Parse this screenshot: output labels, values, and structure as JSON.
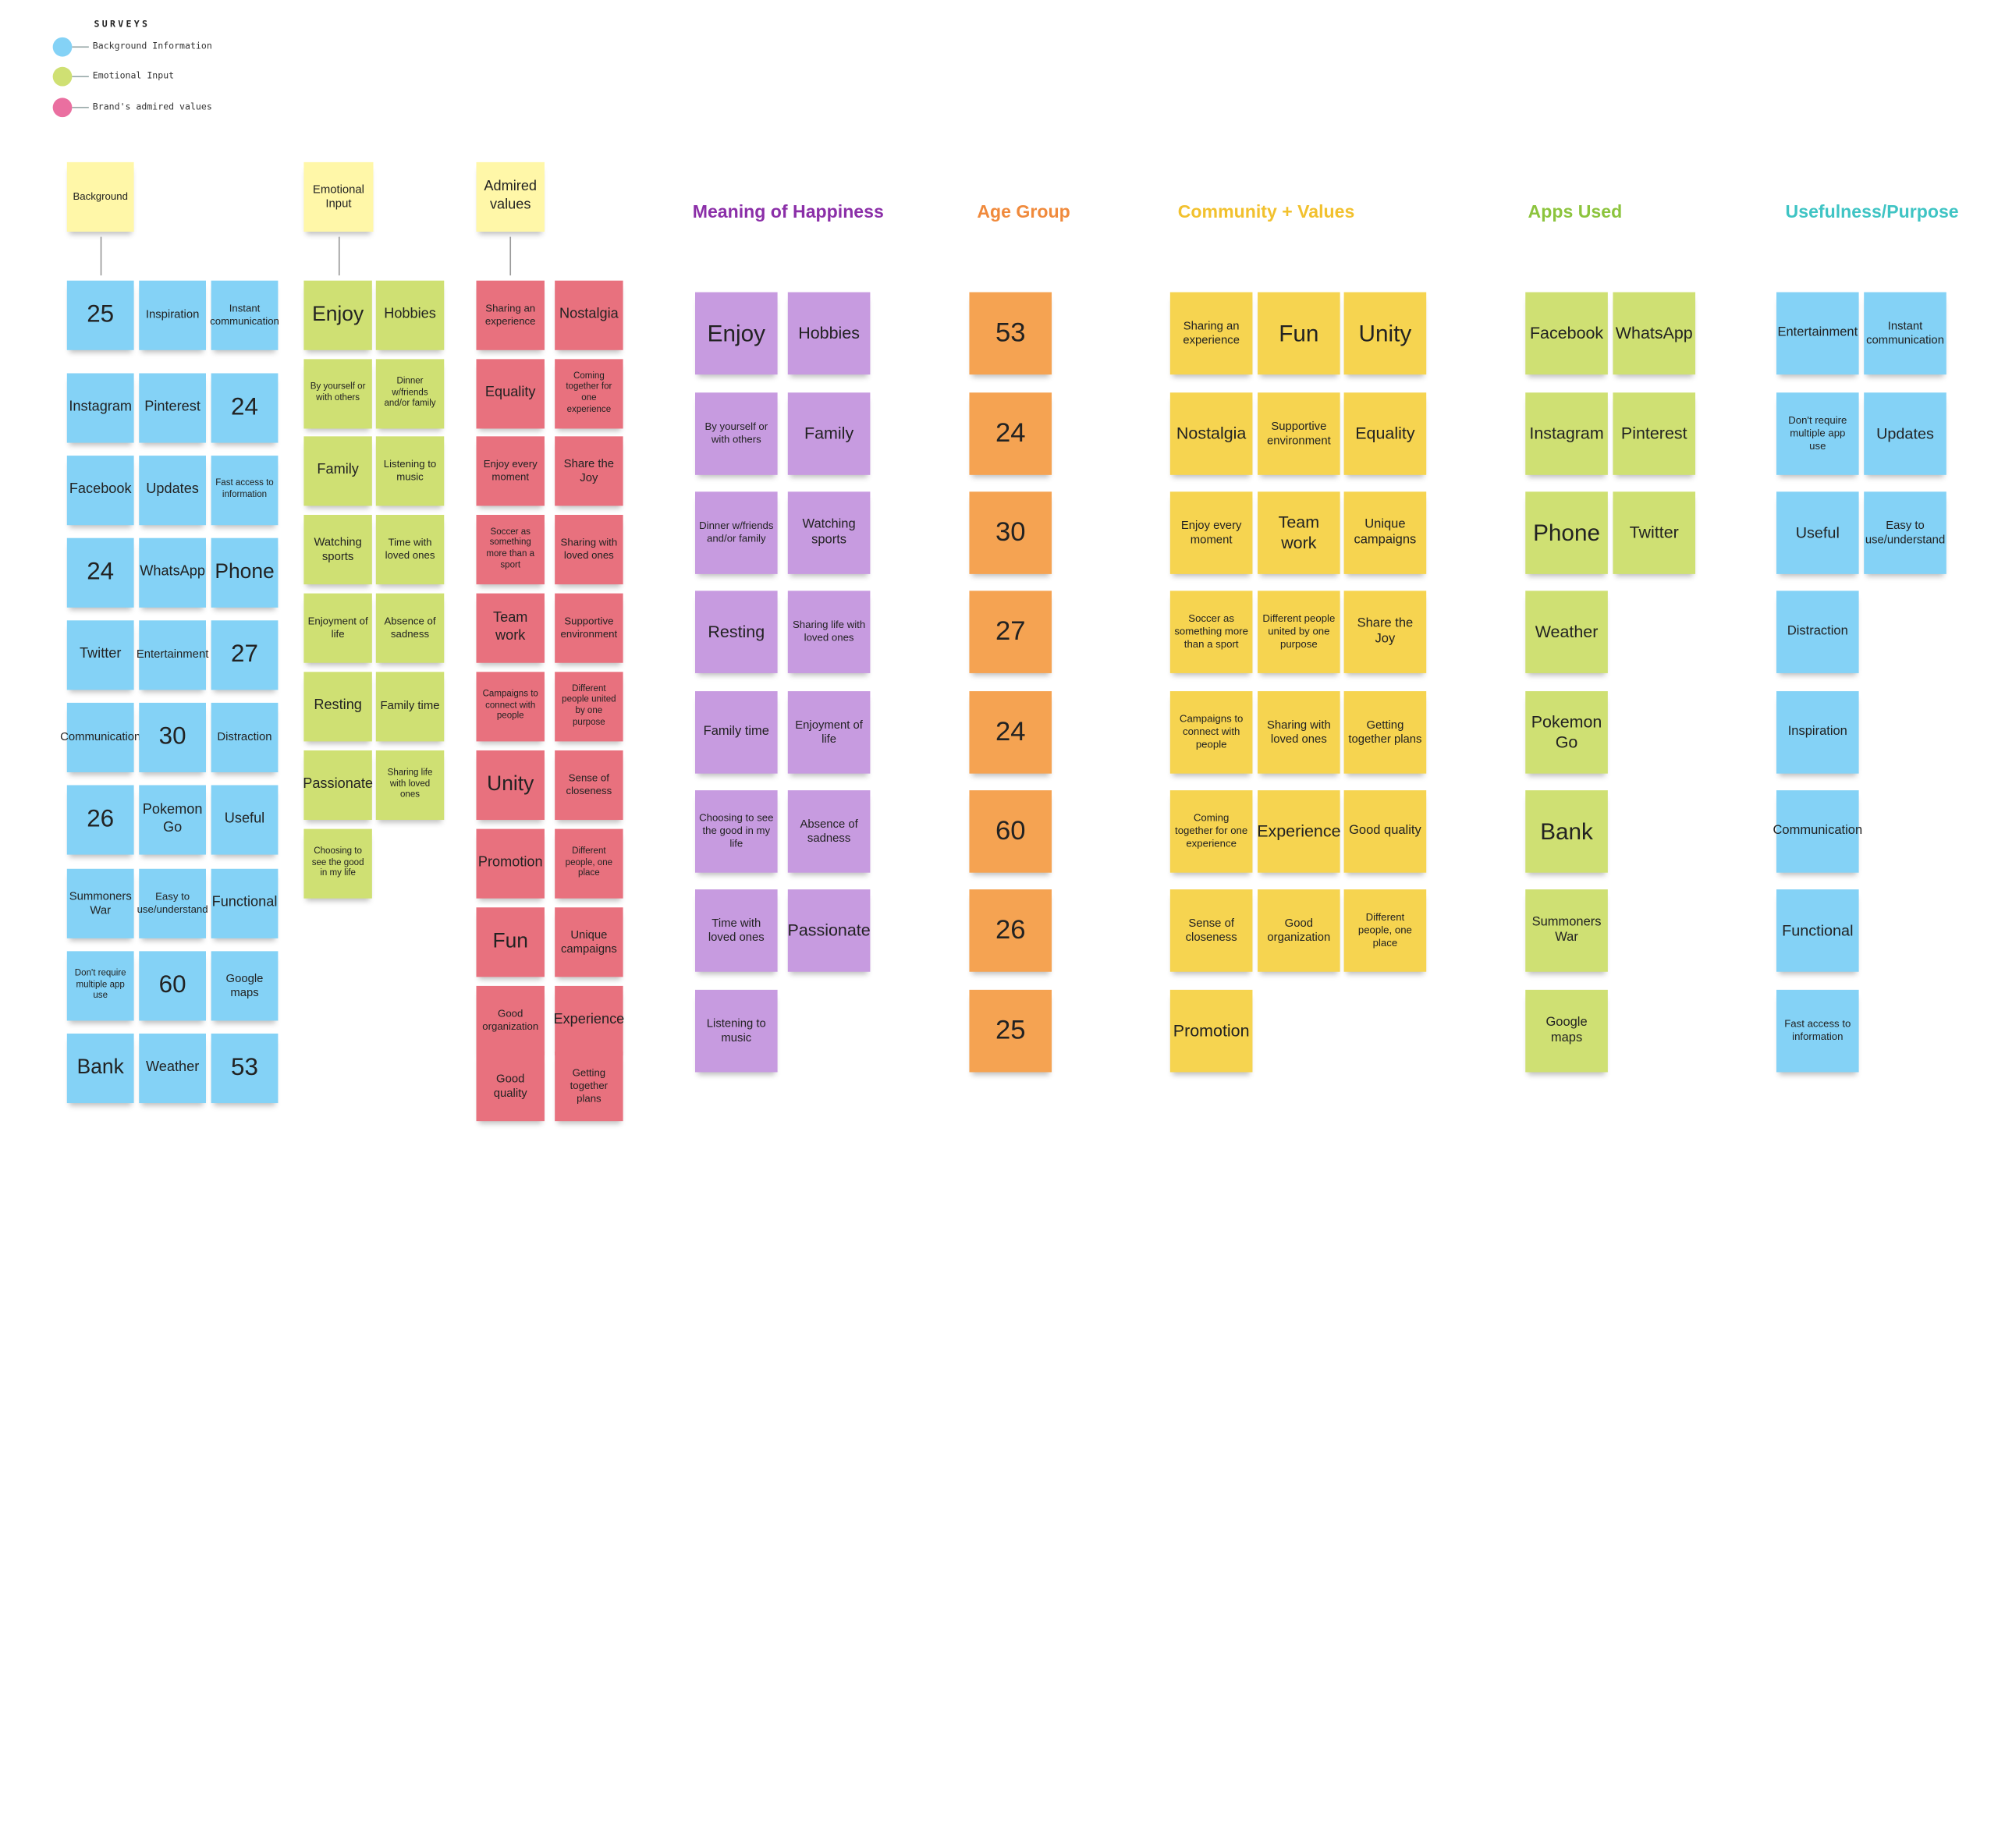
{
  "legend": {
    "title": "SURVEYS",
    "items": [
      {
        "label": "Background Information",
        "color": "#84d2f6"
      },
      {
        "label": "Emotional Input",
        "color": "#cfe073"
      },
      {
        "label": "Brand's admired values",
        "color": "#ea6fa0"
      }
    ]
  },
  "categories": {
    "background": "Background",
    "emotional": "Emotional Input",
    "admired": "Admired values"
  },
  "background_notes": [
    "25",
    "Inspiration",
    "Instant communication",
    "Instagram",
    "Pinterest",
    "24",
    "Facebook",
    "Updates",
    "Fast access to information",
    "24",
    "WhatsApp",
    "Phone",
    "Twitter",
    "Entertainment",
    "27",
    "Communication",
    "30",
    "Distraction",
    "26",
    "Pokemon Go",
    "Useful",
    "Summoners War",
    "Easy to use/understand",
    "Functional",
    "Don't require multiple app use",
    "60",
    "Google maps",
    "Bank",
    "Weather",
    "53"
  ],
  "emotional_notes": [
    "Enjoy",
    "Hobbies",
    "By yourself or with others",
    "Dinner w/friends and/or family",
    "Family",
    "Listening to music",
    "Watching sports",
    "Time with loved ones",
    "Enjoyment of life",
    "Absence of sadness",
    "Resting",
    "Family time",
    "Passionate",
    "Sharing life with loved ones",
    "Choosing to see the good in my life"
  ],
  "admired_notes": [
    "Sharing an experience",
    "Nostalgia",
    "Equality",
    "Coming together for one experience",
    "Enjoy every moment",
    "Share the Joy",
    "Soccer as something more than a sport",
    "Sharing with loved ones",
    "Team work",
    "Supportive environment",
    "Campaigns to connect with people",
    "Different people united by one purpose",
    "Unity",
    "Sense of closeness",
    "Promotion",
    "Different people, one place",
    "Fun",
    "Unique campaigns",
    "Good organization",
    "Experience",
    "Good quality",
    "Getting together plans"
  ],
  "headings": {
    "happiness": {
      "label": "Meaning of Happiness",
      "color": "#8b2fa8"
    },
    "age": {
      "label": "Age Group",
      "color": "#f08a3c"
    },
    "community": {
      "label": "Community + Values",
      "color": "#f2c12e"
    },
    "apps": {
      "label": "Apps Used",
      "color": "#8cc43d"
    },
    "usefulness": {
      "label": "Usefulness/Purpose",
      "color": "#3fc4c4"
    }
  },
  "happiness_notes": [
    "Enjoy",
    "Hobbies",
    "By yourself or with others",
    "Family",
    "Dinner w/friends and/or family",
    "Watching sports",
    "Resting",
    "Sharing life with loved ones",
    "Family time",
    "Enjoyment of life",
    "Choosing to see the good in my life",
    "Absence of sadness",
    "Time with loved ones",
    "Passionate",
    "Listening to music"
  ],
  "age_notes": [
    "53",
    "24",
    "30",
    "27",
    "24",
    "60",
    "26",
    "25"
  ],
  "community_notes": [
    "Sharing an experience",
    "Fun",
    "Unity",
    "Nostalgia",
    "Supportive environment",
    "Equality",
    "Enjoy every moment",
    "Team work",
    "Unique campaigns",
    "Soccer as something more than a sport",
    "Different people united by one purpose",
    "Share the Joy",
    "Campaigns to connect with people",
    "Sharing with loved ones",
    "Getting together plans",
    "Coming together for one experience",
    "Experience",
    "Good quality",
    "Sense of closeness",
    "Good organization",
    "Different people, one place",
    "Promotion"
  ],
  "apps_notes": [
    "Facebook",
    "WhatsApp",
    "Instagram",
    "Pinterest",
    "Phone",
    "Twitter",
    "Weather",
    "Pokemon Go",
    "Bank",
    "Summoners War",
    "Google maps"
  ],
  "usefulness_notes": [
    "Entertainment",
    "Instant communication",
    "Don't require multiple app use",
    "Updates",
    "Useful",
    "Easy to use/understand",
    "Distraction",
    "Inspiration",
    "Communication",
    "Functional",
    "Fast access to information"
  ]
}
